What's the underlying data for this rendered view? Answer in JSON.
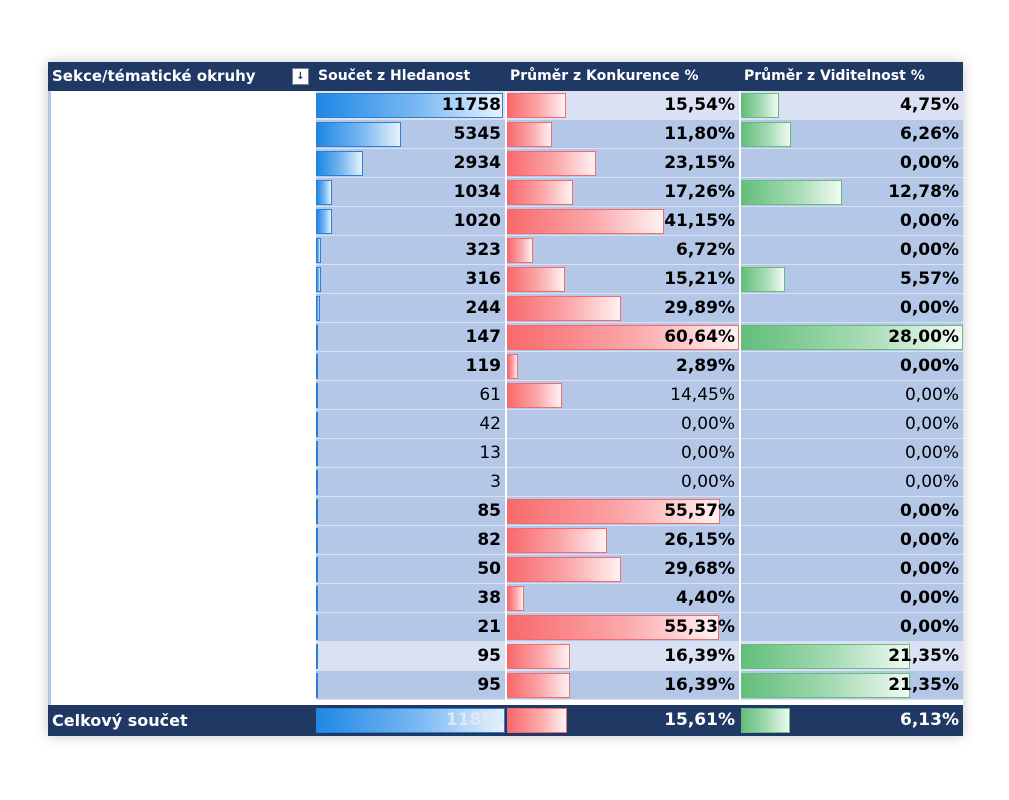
{
  "header": {
    "row_label": "Sekce/tématické okruhy",
    "filter_icon": "sort-filter-icon",
    "filter_glyph": "↓",
    "col1": "Součet z Hledanost",
    "col2": "Průměr z Konkurence %",
    "col3": "Průměr z Viditelnost %"
  },
  "rows": [
    {
      "h": "11758",
      "k": "15,54%",
      "v": "4,75%",
      "hn": 11758,
      "kn": 15.54,
      "vn": 4.75,
      "bold": true,
      "band": "light"
    },
    {
      "h": "5345",
      "k": "11,80%",
      "v": "6,26%",
      "hn": 5345,
      "kn": 11.8,
      "vn": 6.26,
      "bold": true,
      "band": "dark"
    },
    {
      "h": "2934",
      "k": "23,15%",
      "v": "0,00%",
      "hn": 2934,
      "kn": 23.15,
      "vn": 0,
      "bold": true,
      "band": "dark"
    },
    {
      "h": "1034",
      "k": "17,26%",
      "v": "12,78%",
      "hn": 1034,
      "kn": 17.26,
      "vn": 12.78,
      "bold": true,
      "band": "dark"
    },
    {
      "h": "1020",
      "k": "41,15%",
      "v": "0,00%",
      "hn": 1020,
      "kn": 41.15,
      "vn": 0,
      "bold": true,
      "band": "dark"
    },
    {
      "h": "323",
      "k": "6,72%",
      "v": "0,00%",
      "hn": 323,
      "kn": 6.72,
      "vn": 0,
      "bold": true,
      "band": "dark"
    },
    {
      "h": "316",
      "k": "15,21%",
      "v": "5,57%",
      "hn": 316,
      "kn": 15.21,
      "vn": 5.57,
      "bold": true,
      "band": "dark"
    },
    {
      "h": "244",
      "k": "29,89%",
      "v": "0,00%",
      "hn": 244,
      "kn": 29.89,
      "vn": 0,
      "bold": true,
      "band": "dark"
    },
    {
      "h": "147",
      "k": "60,64%",
      "v": "28,00%",
      "hn": 147,
      "kn": 60.64,
      "vn": 28.0,
      "bold": true,
      "band": "dark"
    },
    {
      "h": "119",
      "k": "2,89%",
      "v": "0,00%",
      "hn": 119,
      "kn": 2.89,
      "vn": 0,
      "bold": true,
      "band": "dark"
    },
    {
      "h": "61",
      "k": "14,45%",
      "v": "0,00%",
      "hn": 61,
      "kn": 14.45,
      "vn": 0,
      "bold": false,
      "band": "dark"
    },
    {
      "h": "42",
      "k": "0,00%",
      "v": "0,00%",
      "hn": 42,
      "kn": 0,
      "vn": 0,
      "bold": false,
      "band": "dark"
    },
    {
      "h": "13",
      "k": "0,00%",
      "v": "0,00%",
      "hn": 13,
      "kn": 0,
      "vn": 0,
      "bold": false,
      "band": "dark"
    },
    {
      "h": "3",
      "k": "0,00%",
      "v": "0,00%",
      "hn": 3,
      "kn": 0,
      "vn": 0,
      "bold": false,
      "band": "dark"
    },
    {
      "h": "85",
      "k": "55,57%",
      "v": "0,00%",
      "hn": 85,
      "kn": 55.57,
      "vn": 0,
      "bold": true,
      "band": "dark"
    },
    {
      "h": "82",
      "k": "26,15%",
      "v": "0,00%",
      "hn": 82,
      "kn": 26.15,
      "vn": 0,
      "bold": true,
      "band": "dark"
    },
    {
      "h": "50",
      "k": "29,68%",
      "v": "0,00%",
      "hn": 50,
      "kn": 29.68,
      "vn": 0,
      "bold": true,
      "band": "dark"
    },
    {
      "h": "38",
      "k": "4,40%",
      "v": "0,00%",
      "hn": 38,
      "kn": 4.4,
      "vn": 0,
      "bold": true,
      "band": "dark"
    },
    {
      "h": "21",
      "k": "55,33%",
      "v": "0,00%",
      "hn": 21,
      "kn": 55.33,
      "vn": 0,
      "bold": true,
      "band": "dark"
    },
    {
      "h": "95",
      "k": "16,39%",
      "v": "21,35%",
      "hn": 95,
      "kn": 16.39,
      "vn": 21.35,
      "bold": true,
      "band": "light"
    },
    {
      "h": "95",
      "k": "16,39%",
      "v": "21,35%",
      "hn": 95,
      "kn": 16.39,
      "vn": 21.35,
      "bold": true,
      "band": "dark"
    }
  ],
  "total": {
    "label": "Celkový součet",
    "h": "11853",
    "k": "15,61%",
    "v": "6,13%",
    "hn": 11853,
    "kn": 15.61,
    "vn": 6.13
  },
  "scale": {
    "h_max": 11853,
    "k_max": 60.64,
    "v_max": 28.0
  },
  "colors": {
    "header_bg": "#203864",
    "band_dark": "#b4c7e7",
    "band_light": "#d9e1f2",
    "bar_blue": "#1e88e5",
    "bar_red": "#f8696b",
    "bar_green": "#63be7b"
  }
}
